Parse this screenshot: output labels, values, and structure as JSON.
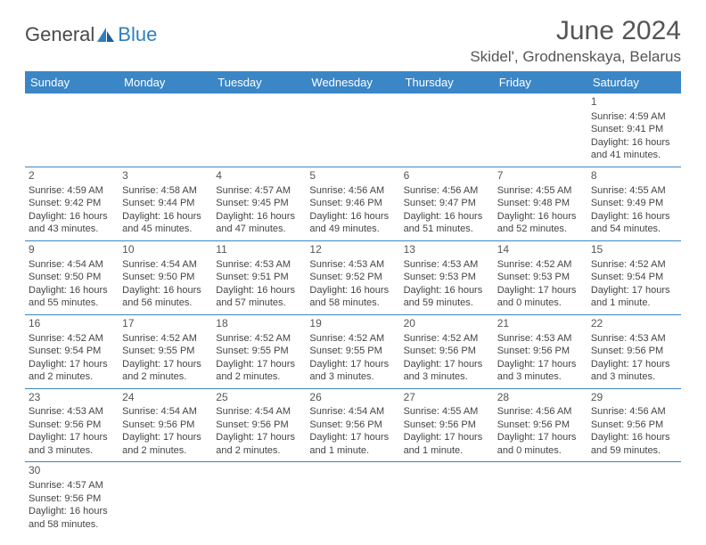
{
  "logo": {
    "text1": "General",
    "text2": "Blue"
  },
  "title": "June 2024",
  "location": "Skidel', Grodnenskaya, Belarus",
  "colors": {
    "header_bg": "#3b86c6",
    "header_text": "#ffffff",
    "border": "#3b86c6",
    "text": "#444444",
    "title": "#555555"
  },
  "weekdays": [
    "Sunday",
    "Monday",
    "Tuesday",
    "Wednesday",
    "Thursday",
    "Friday",
    "Saturday"
  ],
  "weeks": [
    [
      null,
      null,
      null,
      null,
      null,
      null,
      {
        "d": "1",
        "sr": "Sunrise: 4:59 AM",
        "ss": "Sunset: 9:41 PM",
        "dl": "Daylight: 16 hours and 41 minutes."
      }
    ],
    [
      {
        "d": "2",
        "sr": "Sunrise: 4:59 AM",
        "ss": "Sunset: 9:42 PM",
        "dl": "Daylight: 16 hours and 43 minutes."
      },
      {
        "d": "3",
        "sr": "Sunrise: 4:58 AM",
        "ss": "Sunset: 9:44 PM",
        "dl": "Daylight: 16 hours and 45 minutes."
      },
      {
        "d": "4",
        "sr": "Sunrise: 4:57 AM",
        "ss": "Sunset: 9:45 PM",
        "dl": "Daylight: 16 hours and 47 minutes."
      },
      {
        "d": "5",
        "sr": "Sunrise: 4:56 AM",
        "ss": "Sunset: 9:46 PM",
        "dl": "Daylight: 16 hours and 49 minutes."
      },
      {
        "d": "6",
        "sr": "Sunrise: 4:56 AM",
        "ss": "Sunset: 9:47 PM",
        "dl": "Daylight: 16 hours and 51 minutes."
      },
      {
        "d": "7",
        "sr": "Sunrise: 4:55 AM",
        "ss": "Sunset: 9:48 PM",
        "dl": "Daylight: 16 hours and 52 minutes."
      },
      {
        "d": "8",
        "sr": "Sunrise: 4:55 AM",
        "ss": "Sunset: 9:49 PM",
        "dl": "Daylight: 16 hours and 54 minutes."
      }
    ],
    [
      {
        "d": "9",
        "sr": "Sunrise: 4:54 AM",
        "ss": "Sunset: 9:50 PM",
        "dl": "Daylight: 16 hours and 55 minutes."
      },
      {
        "d": "10",
        "sr": "Sunrise: 4:54 AM",
        "ss": "Sunset: 9:50 PM",
        "dl": "Daylight: 16 hours and 56 minutes."
      },
      {
        "d": "11",
        "sr": "Sunrise: 4:53 AM",
        "ss": "Sunset: 9:51 PM",
        "dl": "Daylight: 16 hours and 57 minutes."
      },
      {
        "d": "12",
        "sr": "Sunrise: 4:53 AM",
        "ss": "Sunset: 9:52 PM",
        "dl": "Daylight: 16 hours and 58 minutes."
      },
      {
        "d": "13",
        "sr": "Sunrise: 4:53 AM",
        "ss": "Sunset: 9:53 PM",
        "dl": "Daylight: 16 hours and 59 minutes."
      },
      {
        "d": "14",
        "sr": "Sunrise: 4:52 AM",
        "ss": "Sunset: 9:53 PM",
        "dl": "Daylight: 17 hours and 0 minutes."
      },
      {
        "d": "15",
        "sr": "Sunrise: 4:52 AM",
        "ss": "Sunset: 9:54 PM",
        "dl": "Daylight: 17 hours and 1 minute."
      }
    ],
    [
      {
        "d": "16",
        "sr": "Sunrise: 4:52 AM",
        "ss": "Sunset: 9:54 PM",
        "dl": "Daylight: 17 hours and 2 minutes."
      },
      {
        "d": "17",
        "sr": "Sunrise: 4:52 AM",
        "ss": "Sunset: 9:55 PM",
        "dl": "Daylight: 17 hours and 2 minutes."
      },
      {
        "d": "18",
        "sr": "Sunrise: 4:52 AM",
        "ss": "Sunset: 9:55 PM",
        "dl": "Daylight: 17 hours and 2 minutes."
      },
      {
        "d": "19",
        "sr": "Sunrise: 4:52 AM",
        "ss": "Sunset: 9:55 PM",
        "dl": "Daylight: 17 hours and 3 minutes."
      },
      {
        "d": "20",
        "sr": "Sunrise: 4:52 AM",
        "ss": "Sunset: 9:56 PM",
        "dl": "Daylight: 17 hours and 3 minutes."
      },
      {
        "d": "21",
        "sr": "Sunrise: 4:53 AM",
        "ss": "Sunset: 9:56 PM",
        "dl": "Daylight: 17 hours and 3 minutes."
      },
      {
        "d": "22",
        "sr": "Sunrise: 4:53 AM",
        "ss": "Sunset: 9:56 PM",
        "dl": "Daylight: 17 hours and 3 minutes."
      }
    ],
    [
      {
        "d": "23",
        "sr": "Sunrise: 4:53 AM",
        "ss": "Sunset: 9:56 PM",
        "dl": "Daylight: 17 hours and 3 minutes."
      },
      {
        "d": "24",
        "sr": "Sunrise: 4:54 AM",
        "ss": "Sunset: 9:56 PM",
        "dl": "Daylight: 17 hours and 2 minutes."
      },
      {
        "d": "25",
        "sr": "Sunrise: 4:54 AM",
        "ss": "Sunset: 9:56 PM",
        "dl": "Daylight: 17 hours and 2 minutes."
      },
      {
        "d": "26",
        "sr": "Sunrise: 4:54 AM",
        "ss": "Sunset: 9:56 PM",
        "dl": "Daylight: 17 hours and 1 minute."
      },
      {
        "d": "27",
        "sr": "Sunrise: 4:55 AM",
        "ss": "Sunset: 9:56 PM",
        "dl": "Daylight: 17 hours and 1 minute."
      },
      {
        "d": "28",
        "sr": "Sunrise: 4:56 AM",
        "ss": "Sunset: 9:56 PM",
        "dl": "Daylight: 17 hours and 0 minutes."
      },
      {
        "d": "29",
        "sr": "Sunrise: 4:56 AM",
        "ss": "Sunset: 9:56 PM",
        "dl": "Daylight: 16 hours and 59 minutes."
      }
    ],
    [
      {
        "d": "30",
        "sr": "Sunrise: 4:57 AM",
        "ss": "Sunset: 9:56 PM",
        "dl": "Daylight: 16 hours and 58 minutes."
      },
      null,
      null,
      null,
      null,
      null,
      null
    ]
  ]
}
